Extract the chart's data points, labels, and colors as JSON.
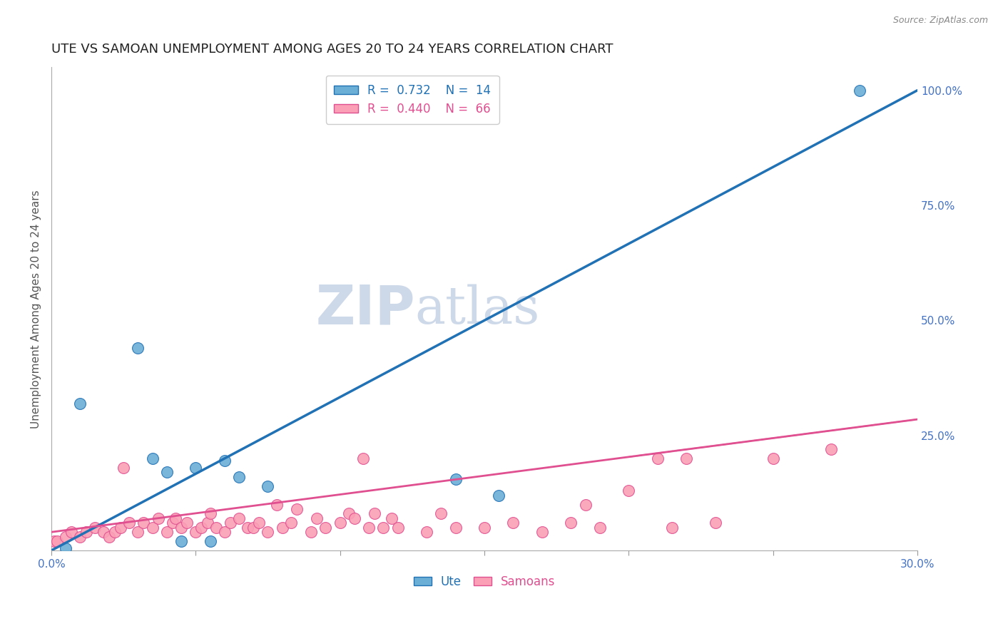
{
  "title": "UTE VS SAMOAN UNEMPLOYMENT AMONG AGES 20 TO 24 YEARS CORRELATION CHART",
  "source": "Source: ZipAtlas.com",
  "xlabel": "",
  "ylabel": "Unemployment Among Ages 20 to 24 years",
  "xlim": [
    0.0,
    0.3
  ],
  "ylim": [
    0.0,
    1.05
  ],
  "xticks": [
    0.0,
    0.05,
    0.1,
    0.15,
    0.2,
    0.25,
    0.3
  ],
  "xticklabels": [
    "0.0%",
    "",
    "",
    "",
    "",
    "",
    "30.0%"
  ],
  "yticks_right": [
    0.0,
    0.25,
    0.5,
    0.75,
    1.0
  ],
  "yticklabels_right": [
    "",
    "25.0%",
    "50.0%",
    "75.0%",
    "100.0%"
  ],
  "ute_color": "#6baed6",
  "samoan_color": "#fa9fb5",
  "ute_line_color": "#2171b5",
  "samoan_line_color": "#e05090",
  "watermark_first": "ZIP",
  "watermark_second": "atlas",
  "legend_R_ute": "R =  0.732",
  "legend_N_ute": "N =  14",
  "legend_R_samoan": "R =  0.440",
  "legend_N_samoan": "N =  66",
  "ute_x": [
    0.005,
    0.01,
    0.03,
    0.035,
    0.04,
    0.045,
    0.05,
    0.055,
    0.06,
    0.065,
    0.075,
    0.14,
    0.155,
    0.28
  ],
  "ute_y": [
    0.005,
    0.32,
    0.44,
    0.2,
    0.17,
    0.02,
    0.18,
    0.02,
    0.195,
    0.16,
    0.14,
    0.155,
    0.12,
    1.0
  ],
  "samoan_x": [
    0.001,
    0.002,
    0.005,
    0.007,
    0.01,
    0.012,
    0.015,
    0.018,
    0.02,
    0.022,
    0.024,
    0.025,
    0.027,
    0.03,
    0.032,
    0.035,
    0.037,
    0.04,
    0.042,
    0.043,
    0.045,
    0.047,
    0.05,
    0.052,
    0.054,
    0.055,
    0.057,
    0.06,
    0.062,
    0.065,
    0.068,
    0.07,
    0.072,
    0.075,
    0.078,
    0.08,
    0.083,
    0.085,
    0.09,
    0.092,
    0.095,
    0.1,
    0.103,
    0.105,
    0.108,
    0.11,
    0.112,
    0.115,
    0.118,
    0.12,
    0.13,
    0.135,
    0.14,
    0.15,
    0.16,
    0.17,
    0.18,
    0.185,
    0.19,
    0.2,
    0.21,
    0.215,
    0.22,
    0.23,
    0.25,
    0.27
  ],
  "samoan_y": [
    0.02,
    0.02,
    0.03,
    0.04,
    0.03,
    0.04,
    0.05,
    0.04,
    0.03,
    0.04,
    0.05,
    0.18,
    0.06,
    0.04,
    0.06,
    0.05,
    0.07,
    0.04,
    0.06,
    0.07,
    0.05,
    0.06,
    0.04,
    0.05,
    0.06,
    0.08,
    0.05,
    0.04,
    0.06,
    0.07,
    0.05,
    0.05,
    0.06,
    0.04,
    0.1,
    0.05,
    0.06,
    0.09,
    0.04,
    0.07,
    0.05,
    0.06,
    0.08,
    0.07,
    0.2,
    0.05,
    0.08,
    0.05,
    0.07,
    0.05,
    0.04,
    0.08,
    0.05,
    0.05,
    0.06,
    0.04,
    0.06,
    0.1,
    0.05,
    0.13,
    0.2,
    0.05,
    0.2,
    0.06,
    0.2,
    0.22
  ],
  "background_color": "#ffffff",
  "grid_color": "#cccccc",
  "title_fontsize": 13,
  "axis_label_fontsize": 11,
  "tick_fontsize": 11,
  "legend_fontsize": 12,
  "watermark_color": "#cdd8e8",
  "watermark_fontsize_zip": 55,
  "watermark_fontsize_atlas": 52,
  "ute_line_x0": 0.0,
  "ute_line_y0": 0.0,
  "ute_line_x1": 0.3,
  "ute_line_y1": 1.0,
  "samoan_line_x0": 0.0,
  "samoan_line_y0": 0.04,
  "samoan_line_x1": 0.3,
  "samoan_line_y1": 0.285
}
